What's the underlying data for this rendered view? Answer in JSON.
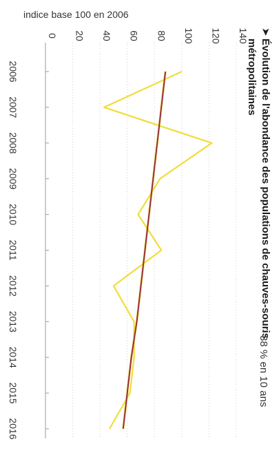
{
  "chart_data": {
    "type": "line",
    "title": "Évolution de l'abondance des populations de chauves-souris métropolitaines",
    "title_lines": [
      "Évolution de l'abondance des populations de chauves-souris",
      "métropolitaines"
    ],
    "title_marker": "➤",
    "ylabel": "indice base 100 en 2006",
    "x": [
      "2006",
      "2007",
      "2008",
      "2009",
      "2010",
      "2011",
      "2012",
      "2013",
      "2014",
      "2015",
      "2016"
    ],
    "ylim": [
      0,
      140
    ],
    "yticks": [
      0,
      20,
      40,
      60,
      80,
      100,
      120,
      140
    ],
    "grid": true,
    "orientation": "rotated-90-clockwise",
    "series": [
      {
        "values": [
          100,
          43,
          122,
          84,
          68,
          85,
          50,
          65,
          65,
          62,
          47
        ],
        "color": "#f2dc3a"
      },
      {
        "values": [
          88,
          85,
          82,
          79,
          76,
          73,
          70,
          67,
          63,
          60,
          57
        ],
        "color": "#8a2a3c",
        "trend_overlay_color": "#f0c020"
      }
    ],
    "annotation": "- 38 % en 10 ans"
  }
}
